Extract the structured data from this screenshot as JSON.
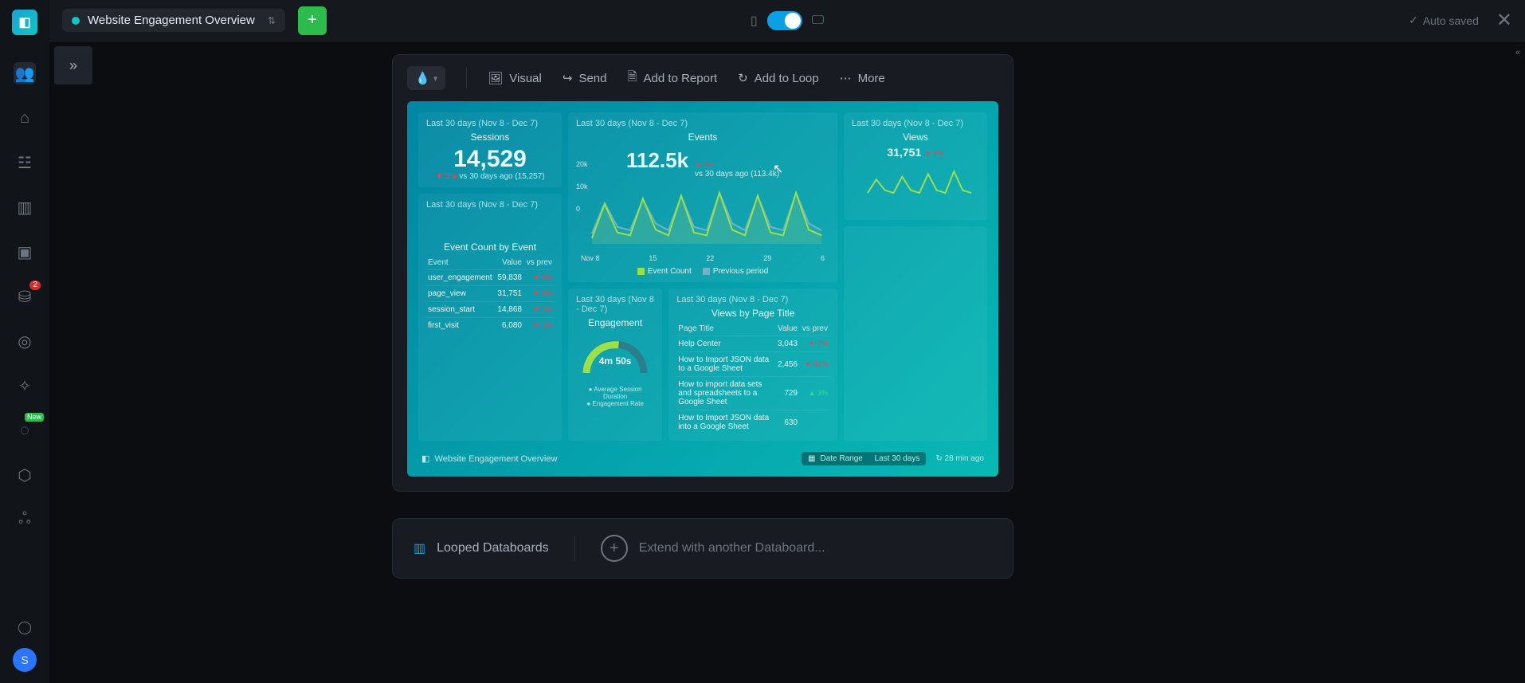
{
  "theme": {
    "bg_deep": "#0b0d11",
    "bg_panel": "#181b21",
    "accent_cyan": "#0fc6c2",
    "accent_green": "#2dbb4d",
    "toggle_on": "#0aa0e6",
    "board_grad_a": "#0086a3",
    "board_grad_b": "#08b9b4",
    "chart_line": "#9be048",
    "red": "#ff3b4b",
    "green_up": "#2ce07f"
  },
  "topbar": {
    "title": "Website Engagement Overview",
    "auto_saved": "Auto saved",
    "plus": "+",
    "close": "✕"
  },
  "sidebar": {
    "logo_glyph": "◧",
    "avatar_letter": "S",
    "items": [
      {
        "name": "people",
        "glyph": "👥",
        "active": true
      },
      {
        "name": "home",
        "glyph": "⌂"
      },
      {
        "name": "metrics",
        "glyph": "☳"
      },
      {
        "name": "databoards",
        "glyph": "▥"
      },
      {
        "name": "slides",
        "glyph": "▣"
      },
      {
        "name": "data-sources",
        "glyph": "⛁",
        "badge": "2"
      },
      {
        "name": "goals",
        "glyph": "◎"
      },
      {
        "name": "alerts",
        "glyph": "✧"
      },
      {
        "name": "insights",
        "glyph": "◌",
        "new": "New"
      },
      {
        "name": "security",
        "glyph": "⬡"
      },
      {
        "name": "org",
        "glyph": "ஃ"
      },
      {
        "name": "help",
        "glyph": "◯"
      }
    ]
  },
  "card_toolbar": {
    "theme_glyph": "💧",
    "items": [
      {
        "name": "visual",
        "glyph": "🖼",
        "label": "Visual"
      },
      {
        "name": "send",
        "glyph": "↪",
        "label": "Send"
      },
      {
        "name": "add-report",
        "glyph": "🗎",
        "label": "Add to Report"
      },
      {
        "name": "add-loop",
        "glyph": "↻",
        "label": "Add to Loop"
      },
      {
        "name": "more",
        "glyph": "⋯",
        "label": "More"
      }
    ]
  },
  "dashboard": {
    "date_range_label": "Last 30 days (Nov 8 - Dec 7)",
    "sessions": {
      "title": "Sessions",
      "value": "14,529",
      "delta": "▼ 5%",
      "compare": "vs 30 days ago (15,257)"
    },
    "events": {
      "title": "Events",
      "value": "112.5k",
      "delta": "▼ 1%",
      "compare": "vs 30 days ago (113.4k)",
      "chart": {
        "type": "line",
        "yticks": [
          "20k",
          "10k",
          "0"
        ],
        "xticks": [
          "Nov 8",
          "15",
          "22",
          "29",
          "6"
        ],
        "series_color": "#9be048",
        "prev_color": "#6fb3c8",
        "points": [
          2,
          14,
          4,
          3,
          16,
          5,
          3,
          17,
          4,
          3,
          18,
          5,
          3,
          17,
          4,
          3,
          18,
          5,
          3
        ],
        "prev_points": [
          3,
          12,
          5,
          4,
          13,
          6,
          4,
          14,
          5,
          4,
          15,
          6,
          4,
          14,
          5,
          4,
          15,
          6,
          4
        ],
        "legend": [
          {
            "color": "#9be048",
            "label": "Event Count",
            "checked": true
          },
          {
            "color": "#6fb3c8",
            "label": "Previous period",
            "checked": true
          }
        ]
      }
    },
    "views": {
      "title": "Views",
      "value": "31,751",
      "delta": "▼ 7%",
      "spark": {
        "type": "line",
        "color": "#9be048",
        "points": [
          5,
          10,
          6,
          5,
          11,
          6,
          5,
          12,
          6,
          5,
          13,
          6,
          5
        ]
      }
    },
    "event_count_table": {
      "title": "Event Count by Event",
      "columns": [
        "Event",
        "Value",
        "vs prev"
      ],
      "rows": [
        [
          "user_engagement",
          "59,838",
          "▼ 9%"
        ],
        [
          "page_view",
          "31,751",
          "▼ 9%"
        ],
        [
          "session_start",
          "14,868",
          "▼ 3%"
        ],
        [
          "first_visit",
          "6,080",
          "▼ 3%"
        ]
      ]
    },
    "engagement": {
      "title": "Engagement",
      "value": "4m 50s",
      "legend": [
        "Average Session Duration",
        "Engagement Rate"
      ]
    },
    "views_by_page": {
      "title": "Views by Page Title",
      "columns": [
        "Page Title",
        "Value",
        "vs prev"
      ],
      "rows": [
        [
          "Help Center",
          "3,043",
          "▼ 7%"
        ],
        [
          "How to Import JSON data to a Google Sheet",
          "2,456",
          "▼ 34%"
        ],
        [
          "How to import data sets and spreadsheets to a Google Sheet",
          "729",
          "▲ 3%"
        ],
        [
          "How to Import JSON data into a Google Sheet",
          "630",
          ""
        ]
      ]
    },
    "footer": {
      "title_glyph": "◧",
      "title": "Website Engagement Overview",
      "date_range_chip_label": "Date Range",
      "date_range_chip_value": "Last 30 days",
      "refresh_label": "28 min ago",
      "refresh_glyph": "↻"
    }
  },
  "loop": {
    "icon_glyph": "▥",
    "label": "Looped Databoards",
    "extend": "Extend with another Databoard..."
  }
}
